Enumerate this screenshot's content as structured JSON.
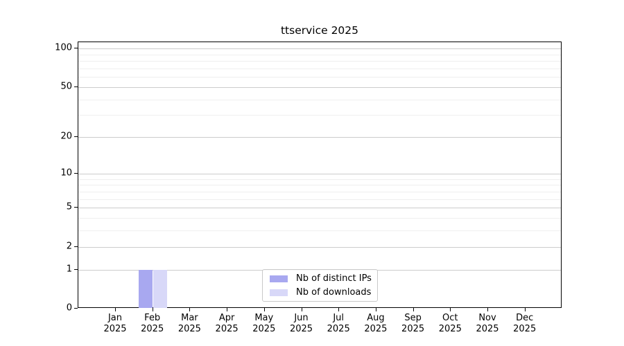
{
  "chart_data": {
    "type": "bar",
    "title": "ttservice 2025",
    "x_year": "2025",
    "categories": [
      "Jan",
      "Feb",
      "Mar",
      "Apr",
      "May",
      "Jun",
      "Jul",
      "Aug",
      "Sep",
      "Oct",
      "Nov",
      "Dec"
    ],
    "series": [
      {
        "name": "Nb of distinct IPs",
        "color": "#a8a8f0",
        "values": [
          0,
          1,
          0,
          0,
          0,
          0,
          0,
          0,
          0,
          0,
          0,
          0
        ]
      },
      {
        "name": "Nb of downloads",
        "color": "#d8d8f8",
        "values": [
          0,
          1,
          0,
          0,
          0,
          0,
          0,
          0,
          0,
          0,
          0,
          0
        ]
      }
    ],
    "yscale": "log1p",
    "ylim": [
      0,
      112
    ],
    "y_major_ticks": [
      0,
      1,
      2,
      5,
      10,
      20,
      50,
      100
    ],
    "y_minor_ticks": [
      3,
      4,
      6,
      7,
      8,
      9,
      30,
      40,
      60,
      70,
      80,
      90
    ],
    "grid": "both",
    "legend_position": "lower center",
    "xlabel": "",
    "ylabel": "",
    "colors": {
      "spine": "#000000",
      "major_grid": "#cccccc",
      "minor_grid": "#efefef",
      "background": "#ffffff"
    }
  }
}
